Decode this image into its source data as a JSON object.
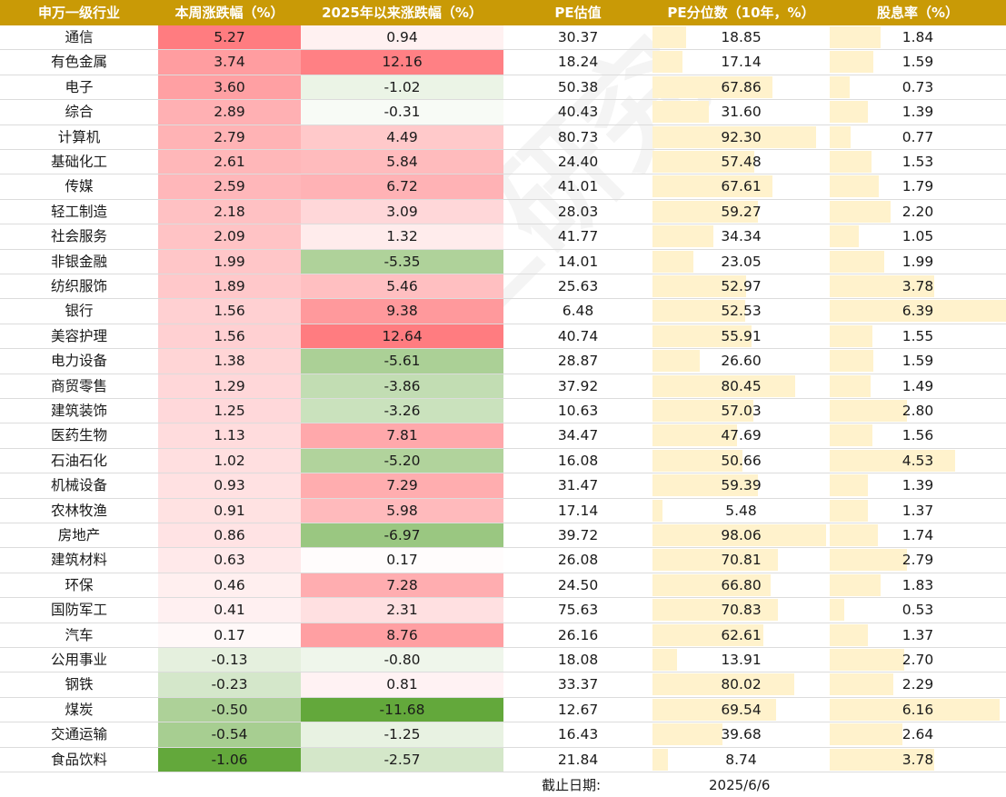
{
  "chart_data": {
    "type": "table",
    "headers": [
      "申万一级行业",
      "本周涨跌幅（%）",
      "2025年以来涨跌幅（%）",
      "PE估值",
      "PE分位数（10年，%）",
      "股息率（%）"
    ],
    "rows": [
      {
        "industry": "通信",
        "weekly": "5.27",
        "ytd": "0.94",
        "pe": "30.37",
        "pe_pct": "18.85",
        "div": "1.84"
      },
      {
        "industry": "有色金属",
        "weekly": "3.74",
        "ytd": "12.16",
        "pe": "18.24",
        "pe_pct": "17.14",
        "div": "1.59"
      },
      {
        "industry": "电子",
        "weekly": "3.60",
        "ytd": "-1.02",
        "pe": "50.38",
        "pe_pct": "67.86",
        "div": "0.73"
      },
      {
        "industry": "综合",
        "weekly": "2.89",
        "ytd": "-0.31",
        "pe": "40.43",
        "pe_pct": "31.60",
        "div": "1.39"
      },
      {
        "industry": "计算机",
        "weekly": "2.79",
        "ytd": "4.49",
        "pe": "80.73",
        "pe_pct": "92.30",
        "div": "0.77"
      },
      {
        "industry": "基础化工",
        "weekly": "2.61",
        "ytd": "5.84",
        "pe": "24.40",
        "pe_pct": "57.48",
        "div": "1.53"
      },
      {
        "industry": "传媒",
        "weekly": "2.59",
        "ytd": "6.72",
        "pe": "41.01",
        "pe_pct": "67.61",
        "div": "1.79"
      },
      {
        "industry": "轻工制造",
        "weekly": "2.18",
        "ytd": "3.09",
        "pe": "28.03",
        "pe_pct": "59.27",
        "div": "2.20"
      },
      {
        "industry": "社会服务",
        "weekly": "2.09",
        "ytd": "1.32",
        "pe": "41.77",
        "pe_pct": "34.34",
        "div": "1.05"
      },
      {
        "industry": "非银金融",
        "weekly": "1.99",
        "ytd": "-5.35",
        "pe": "14.01",
        "pe_pct": "23.05",
        "div": "1.99"
      },
      {
        "industry": "纺织服饰",
        "weekly": "1.89",
        "ytd": "5.46",
        "pe": "25.63",
        "pe_pct": "52.97",
        "div": "3.78"
      },
      {
        "industry": "银行",
        "weekly": "1.56",
        "ytd": "9.38",
        "pe": "6.48",
        "pe_pct": "52.53",
        "div": "6.39"
      },
      {
        "industry": "美容护理",
        "weekly": "1.56",
        "ytd": "12.64",
        "pe": "40.74",
        "pe_pct": "55.91",
        "div": "1.55"
      },
      {
        "industry": "电力设备",
        "weekly": "1.38",
        "ytd": "-5.61",
        "pe": "28.87",
        "pe_pct": "26.60",
        "div": "1.59"
      },
      {
        "industry": "商贸零售",
        "weekly": "1.29",
        "ytd": "-3.86",
        "pe": "37.92",
        "pe_pct": "80.45",
        "div": "1.49"
      },
      {
        "industry": "建筑装饰",
        "weekly": "1.25",
        "ytd": "-3.26",
        "pe": "10.63",
        "pe_pct": "57.03",
        "div": "2.80"
      },
      {
        "industry": "医药生物",
        "weekly": "1.13",
        "ytd": "7.81",
        "pe": "34.47",
        "pe_pct": "47.69",
        "div": "1.56"
      },
      {
        "industry": "石油石化",
        "weekly": "1.02",
        "ytd": "-5.20",
        "pe": "16.08",
        "pe_pct": "50.66",
        "div": "4.53"
      },
      {
        "industry": "机械设备",
        "weekly": "0.93",
        "ytd": "7.29",
        "pe": "31.47",
        "pe_pct": "59.39",
        "div": "1.39"
      },
      {
        "industry": "农林牧渔",
        "weekly": "0.91",
        "ytd": "5.98",
        "pe": "17.14",
        "pe_pct": "5.48",
        "div": "1.37"
      },
      {
        "industry": "房地产",
        "weekly": "0.86",
        "ytd": "-6.97",
        "pe": "39.72",
        "pe_pct": "98.06",
        "div": "1.74"
      },
      {
        "industry": "建筑材料",
        "weekly": "0.63",
        "ytd": "0.17",
        "pe": "26.08",
        "pe_pct": "70.81",
        "div": "2.79"
      },
      {
        "industry": "环保",
        "weekly": "0.46",
        "ytd": "7.28",
        "pe": "24.50",
        "pe_pct": "66.80",
        "div": "1.83"
      },
      {
        "industry": "国防军工",
        "weekly": "0.41",
        "ytd": "2.31",
        "pe": "75.63",
        "pe_pct": "70.83",
        "div": "0.53"
      },
      {
        "industry": "汽车",
        "weekly": "0.17",
        "ytd": "8.76",
        "pe": "26.16",
        "pe_pct": "62.61",
        "div": "1.37"
      },
      {
        "industry": "公用事业",
        "weekly": "-0.13",
        "ytd": "-0.80",
        "pe": "18.08",
        "pe_pct": "13.91",
        "div": "2.70"
      },
      {
        "industry": "钢铁",
        "weekly": "-0.23",
        "ytd": "0.81",
        "pe": "33.37",
        "pe_pct": "80.02",
        "div": "2.29"
      },
      {
        "industry": "煤炭",
        "weekly": "-0.50",
        "ytd": "-11.68",
        "pe": "12.67",
        "pe_pct": "69.54",
        "div": "6.16"
      },
      {
        "industry": "交通运输",
        "weekly": "-0.54",
        "ytd": "-1.25",
        "pe": "16.43",
        "pe_pct": "39.68",
        "div": "2.64"
      },
      {
        "industry": "食品饮料",
        "weekly": "-1.06",
        "ytd": "-2.57",
        "pe": "21.84",
        "pe_pct": "8.74",
        "div": "3.78"
      }
    ]
  },
  "footer": {
    "label": "截止日期:",
    "date": "2025/6/6"
  },
  "watermark": "格上研究",
  "colors": {
    "header_bg": "#c99a06",
    "header_text": "#ffffff",
    "pos_max": "#ff7c80",
    "neg_max": "#63a83b",
    "bar": "#fff2cc"
  }
}
